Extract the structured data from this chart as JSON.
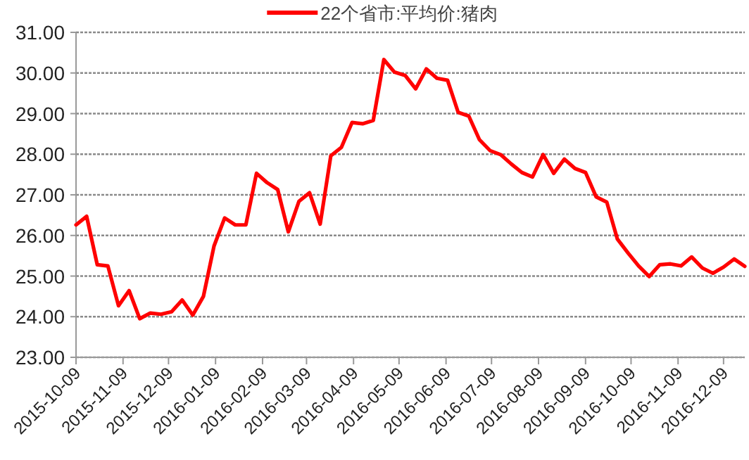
{
  "chart_data": {
    "type": "line",
    "legend": "top",
    "grid": "y",
    "marker": "none",
    "line_style": "solid",
    "x": [
      "2015-10-09",
      "2015-10-16",
      "2015-10-23",
      "2015-10-30",
      "2015-11-06",
      "2015-11-13",
      "2015-11-20",
      "2015-11-27",
      "2015-12-04",
      "2015-12-11",
      "2015-12-18",
      "2015-12-25",
      "2016-01-01",
      "2016-01-08",
      "2016-01-15",
      "2016-01-22",
      "2016-01-29",
      "2016-02-05",
      "2016-02-12",
      "2016-02-19",
      "2016-02-26",
      "2016-03-04",
      "2016-03-11",
      "2016-03-18",
      "2016-03-25",
      "2016-04-01",
      "2016-04-08",
      "2016-04-15",
      "2016-04-22",
      "2016-04-29",
      "2016-05-06",
      "2016-05-13",
      "2016-05-20",
      "2016-05-27",
      "2016-06-03",
      "2016-06-10",
      "2016-06-17",
      "2016-06-24",
      "2016-07-01",
      "2016-07-08",
      "2016-07-15",
      "2016-07-22",
      "2016-07-29",
      "2016-08-05",
      "2016-08-12",
      "2016-08-19",
      "2016-08-26",
      "2016-09-02",
      "2016-09-09",
      "2016-09-16",
      "2016-09-23",
      "2016-09-30",
      "2016-10-07",
      "2016-10-14",
      "2016-10-21",
      "2016-10-28",
      "2016-11-04",
      "2016-11-11",
      "2016-11-18",
      "2016-11-25",
      "2016-12-02",
      "2016-12-09",
      "2016-12-16",
      "2016-12-23"
    ],
    "series": [
      {
        "name": "22个省市:平均价:猪肉",
        "color": "#ff0000",
        "values": [
          26.26,
          26.47,
          25.28,
          25.25,
          24.27,
          24.64,
          23.95,
          24.09,
          24.06,
          24.12,
          24.41,
          24.04,
          24.5,
          25.74,
          26.43,
          26.26,
          26.26,
          27.53,
          27.3,
          27.13,
          26.09,
          26.84,
          27.05,
          26.28,
          27.96,
          28.17,
          28.78,
          28.75,
          28.83,
          30.33,
          30.02,
          29.94,
          29.61,
          30.1,
          29.87,
          29.82,
          29.03,
          28.94,
          28.36,
          28.09,
          27.99,
          27.76,
          27.55,
          27.44,
          27.99,
          27.53,
          27.88,
          27.65,
          27.55,
          26.95,
          26.82,
          25.91,
          25.57,
          25.25,
          24.99,
          25.28,
          25.3,
          25.25,
          25.47,
          25.2,
          25.07,
          25.22,
          25.42,
          25.24
        ]
      }
    ],
    "xlim": [
      "2015-10-09",
      "2016-12-23"
    ],
    "xticks": [
      "2015-10-09",
      "2015-11-09",
      "2015-12-09",
      "2016-01-09",
      "2016-02-09",
      "2016-03-09",
      "2016-04-09",
      "2016-05-09",
      "2016-06-09",
      "2016-07-09",
      "2016-08-09",
      "2016-09-09",
      "2016-10-09",
      "2016-11-09",
      "2016-12-09"
    ],
    "ylim": [
      23,
      31
    ],
    "yticks": [
      {
        "value": 23,
        "label": "23.00"
      },
      {
        "value": 24,
        "label": "24.00"
      },
      {
        "value": 25,
        "label": "25.00"
      },
      {
        "value": 26,
        "label": "26.00"
      },
      {
        "value": 27,
        "label": "27.00"
      },
      {
        "value": 28,
        "label": "28.00"
      },
      {
        "value": 29,
        "label": "29.00"
      },
      {
        "value": 30,
        "label": "30.00"
      },
      {
        "value": 31,
        "label": "31.00"
      }
    ]
  }
}
